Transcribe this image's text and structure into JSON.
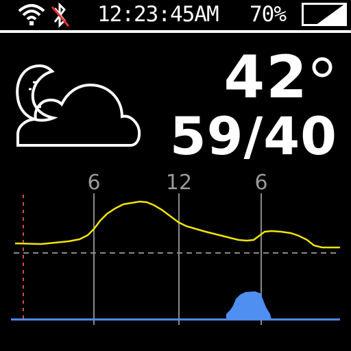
{
  "status": {
    "time": "12:23:45AM",
    "battery_percent": "70%",
    "battery_level": 0.7,
    "wifi_icon": "wifi-icon",
    "bluetooth_icon": "bluetooth-disabled-icon"
  },
  "weather": {
    "condition_icon": "partly-cloudy-night-icon",
    "current_temp": "42",
    "hi_lo": "59/40"
  },
  "forecast_graph": {
    "tick_labels": [
      "6",
      "12",
      "6"
    ],
    "colors": {
      "temperature": "#f2e600",
      "precipitation": "#4f8ff2",
      "gridline": "#8a8a8a",
      "now_marker": "#d44a4a"
    }
  }
}
